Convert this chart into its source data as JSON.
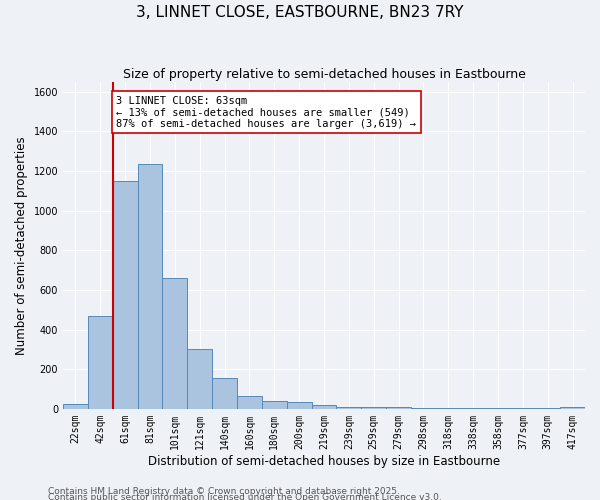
{
  "title": "3, LINNET CLOSE, EASTBOURNE, BN23 7RY",
  "subtitle": "Size of property relative to semi-detached houses in Eastbourne",
  "xlabel": "Distribution of semi-detached houses by size in Eastbourne",
  "ylabel": "Number of semi-detached properties",
  "categories": [
    "22sqm",
    "42sqm",
    "61sqm",
    "81sqm",
    "101sqm",
    "121sqm",
    "140sqm",
    "160sqm",
    "180sqm",
    "200sqm",
    "219sqm",
    "239sqm",
    "259sqm",
    "279sqm",
    "298sqm",
    "318sqm",
    "338sqm",
    "358sqm",
    "377sqm",
    "397sqm",
    "417sqm"
  ],
  "values": [
    25,
    470,
    1150,
    1235,
    660,
    300,
    155,
    65,
    40,
    35,
    20,
    8,
    8,
    10,
    5,
    4,
    3,
    3,
    2,
    2,
    10
  ],
  "bar_color": "#aac4e0",
  "bar_edge_color": "#5588bb",
  "vline_x_index": 2,
  "vline_color": "#cc0000",
  "annotation_text": "3 LINNET CLOSE: 63sqm\n← 13% of semi-detached houses are smaller (549)\n87% of semi-detached houses are larger (3,619) →",
  "annotation_box_color": "#ffffff",
  "annotation_box_edge": "#cc0000",
  "ylim": [
    0,
    1650
  ],
  "yticks": [
    0,
    200,
    400,
    600,
    800,
    1000,
    1200,
    1400,
    1600
  ],
  "footer1": "Contains HM Land Registry data © Crown copyright and database right 2025.",
  "footer2": "Contains public sector information licensed under the Open Government Licence v3.0.",
  "bg_color": "#eef2f7",
  "grid_color": "#ffffff",
  "title_fontsize": 11,
  "subtitle_fontsize": 9,
  "tick_fontsize": 7,
  "label_fontsize": 8.5,
  "footer_fontsize": 6.5,
  "annotation_fontsize": 7.5
}
